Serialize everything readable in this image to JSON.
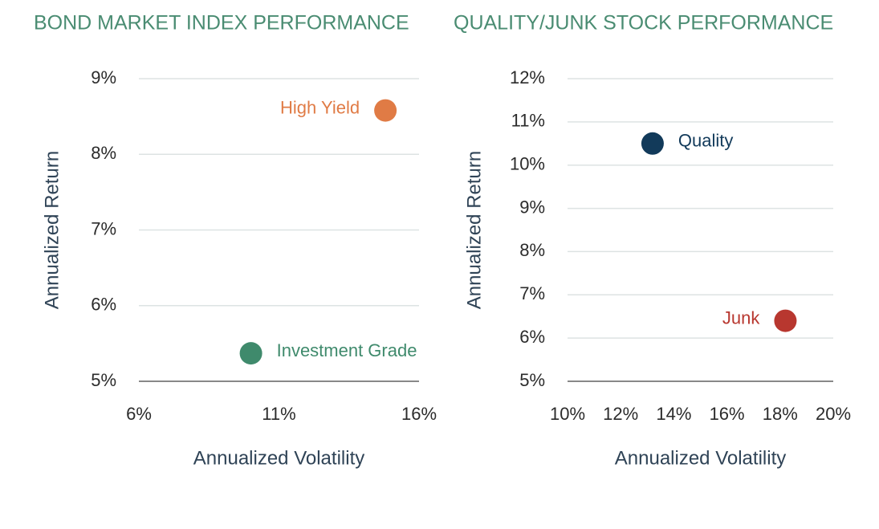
{
  "chart_data": [
    {
      "type": "scatter",
      "title": "BOND MARKET INDEX PERFORMANCE",
      "x_label": "Annualized Volatility",
      "y_label": "Annualized Return",
      "xlim": [
        6,
        16
      ],
      "xticks": [
        {
          "value": 6,
          "label": "6%"
        },
        {
          "value": 11,
          "label": "11%"
        },
        {
          "value": 16,
          "label": "16%"
        }
      ],
      "ylim": [
        5,
        9
      ],
      "yticks": [
        {
          "value": 5,
          "label": "5%"
        },
        {
          "value": 6,
          "label": "6%"
        },
        {
          "value": 7,
          "label": "7%"
        },
        {
          "value": 8,
          "label": "8%"
        },
        {
          "value": 9,
          "label": "9%"
        }
      ],
      "grid": true,
      "series": [
        {
          "name": "High Yield",
          "color": "#e07b45",
          "x": [
            14.8
          ],
          "values": [
            8.58
          ]
        },
        {
          "name": "Investment Grade",
          "color": "#3f8a6c",
          "x": [
            10.0
          ],
          "values": [
            5.37
          ]
        }
      ]
    },
    {
      "type": "scatter",
      "title": "QUALITY/JUNK STOCK PERFORMANCE",
      "x_label": "Annualized Volatility",
      "y_label": "Annualized Return",
      "xlim": [
        10,
        20
      ],
      "xticks": [
        {
          "value": 10,
          "label": "10%"
        },
        {
          "value": 12,
          "label": "12%"
        },
        {
          "value": 14,
          "label": "14%"
        },
        {
          "value": 16,
          "label": "16%"
        },
        {
          "value": 18,
          "label": "18%"
        },
        {
          "value": 20,
          "label": "20%"
        }
      ],
      "ylim": [
        5,
        12
      ],
      "yticks": [
        {
          "value": 5,
          "label": "5%"
        },
        {
          "value": 6,
          "label": "6%"
        },
        {
          "value": 7,
          "label": "7%"
        },
        {
          "value": 8,
          "label": "8%"
        },
        {
          "value": 9,
          "label": "9%"
        },
        {
          "value": 10,
          "label": "10%"
        },
        {
          "value": 11,
          "label": "11%"
        },
        {
          "value": 12,
          "label": "12%"
        }
      ],
      "grid": true,
      "series": [
        {
          "name": "Quality",
          "color": "#123a5a",
          "x": [
            13.2
          ],
          "values": [
            10.5
          ]
        },
        {
          "name": "Junk",
          "color": "#b8372f",
          "x": [
            18.2
          ],
          "values": [
            6.4
          ]
        }
      ]
    }
  ]
}
